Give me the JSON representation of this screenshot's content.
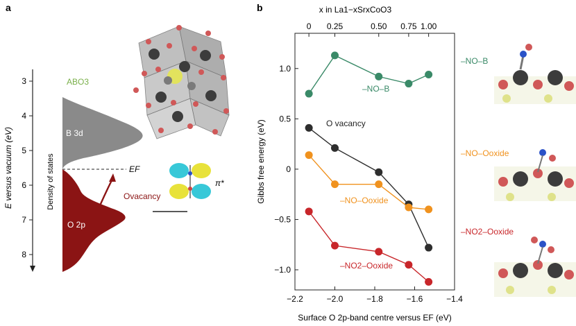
{
  "panel_a": {
    "label": "a",
    "y_axis_label": "E versus vacuum (eV)",
    "y_ticks": [
      3,
      4,
      5,
      6,
      7,
      8
    ],
    "dos_label": "Density of states",
    "abo3_label": "ABO3",
    "band_upper": "B 3d",
    "band_lower": "O 2p",
    "fermi_label": "EF",
    "vacancy_label": "Ovacancy",
    "orbital_label": "π*",
    "fermi_level_ev": 5.55
  },
  "panel_b": {
    "label": "b",
    "top_axis_title": "x in La1−xSrxCoO3",
    "top_ticks": [
      "0",
      "0.25",
      "0.50",
      "0.75",
      "1.00"
    ],
    "structure_labels": [
      "–NO–B",
      "–NO–Ooxide",
      "–NO2–Ooxide"
    ]
  },
  "colors": {
    "no_b": "#3a8a68",
    "o_vacancy": "#2e2e2e",
    "no_o_oxide": "#f0921e",
    "no2_o_oxide": "#c8262a",
    "dos_upper": "#8a8a8a",
    "dos_lower": "#8b1414"
  },
  "chart_data": {
    "type": "line",
    "xlabel": "Surface O 2p-band centre versus EF (eV)",
    "ylabel": "Gibbs free energy (eV)",
    "xlim": [
      -2.2,
      -1.4
    ],
    "ylim": [
      -1.2,
      1.35
    ],
    "xticks": [
      -2.2,
      -2.0,
      -1.8,
      -1.6,
      -1.4
    ],
    "xtick_labels": [
      "−2.2",
      "−2.0",
      "−1.8",
      "−1.6",
      "−1.4"
    ],
    "yticks": [
      1.0,
      0.5,
      0,
      -0.5,
      -1.0
    ],
    "ytick_labels": [
      "1.0",
      "0.5",
      "0",
      "−0.5",
      "−1.0"
    ],
    "x": [
      -2.13,
      -2.0,
      -1.78,
      -1.63,
      -1.53
    ],
    "series": [
      {
        "name": "–NO–B",
        "color_key": "no_b",
        "values": [
          0.75,
          1.13,
          0.92,
          0.85,
          0.94
        ]
      },
      {
        "name": "O vacancy",
        "color_key": "o_vacancy",
        "values": [
          0.41,
          0.21,
          -0.03,
          -0.35,
          -0.78
        ]
      },
      {
        "name": "–NO–Ooxide",
        "color_key": "no_o_oxide",
        "values": [
          0.14,
          -0.15,
          -0.15,
          -0.38,
          -0.4
        ]
      },
      {
        "name": "–NO2–Ooxide",
        "color_key": "no2_o_oxide",
        "values": [
          -0.42,
          -0.76,
          -0.82,
          -0.95,
          -1.12
        ]
      }
    ]
  }
}
